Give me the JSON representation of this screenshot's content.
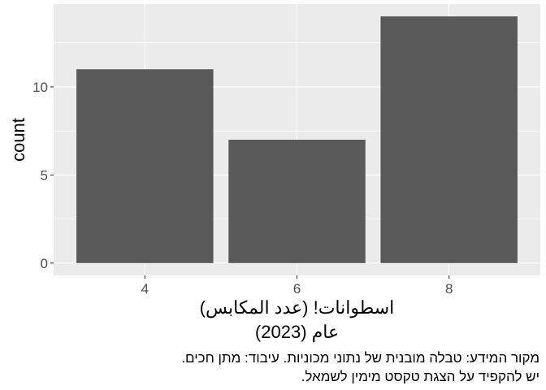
{
  "chart_data": {
    "type": "bar",
    "categories": [
      "4",
      "6",
      "8"
    ],
    "values": [
      11,
      7,
      14
    ],
    "title": "",
    "xlabel_line1": "اسطوانات! (عدد المكابس)",
    "xlabel_line2": "عام (2023)",
    "ylabel": "count",
    "ylim": [
      -0.7,
      14.7
    ],
    "yticks": [
      0,
      5,
      10
    ],
    "grid": true,
    "caption_line1": "מקור המידע: טבלה מובנית של נתוני מכוניות. עיבוד: מתן חכים.",
    "caption_line2": "יש להקפיד על הצגת טקסט מימין לשמאל.",
    "colors": {
      "bar": "#595959",
      "panel": "#ebebeb",
      "grid": "#ffffff"
    }
  }
}
